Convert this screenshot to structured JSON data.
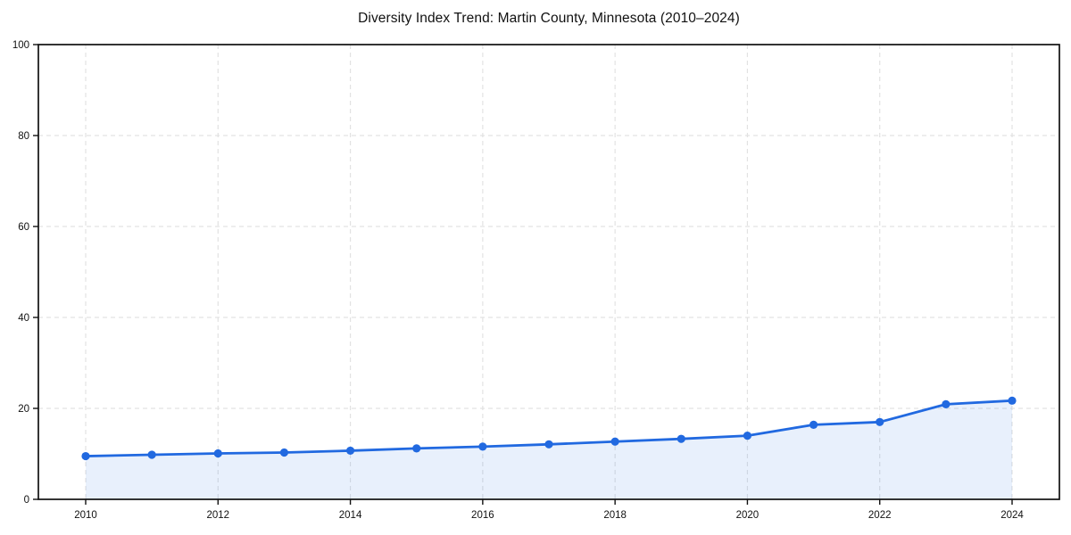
{
  "chart_data": {
    "type": "area",
    "title": "Diversity Index Trend: Martin County, Minnesota (2010–2024)",
    "x": [
      2010,
      2011,
      2012,
      2013,
      2014,
      2015,
      2016,
      2017,
      2018,
      2019,
      2020,
      2021,
      2022,
      2023,
      2024
    ],
    "series": [
      {
        "name": "Diversity Index",
        "values": [
          9.5,
          9.8,
          10.1,
          10.3,
          10.7,
          11.2,
          11.6,
          12.1,
          12.7,
          13.3,
          14.0,
          16.4,
          17.0,
          20.9,
          21.7
        ]
      }
    ],
    "xlabel": "",
    "ylabel": "",
    "ylim": [
      0,
      100
    ],
    "yticks": [
      0,
      20,
      40,
      60,
      80,
      100
    ],
    "xticks": [
      2010,
      2012,
      2014,
      2016,
      2018,
      2020,
      2022,
      2024
    ],
    "grid": "dashed",
    "legend": "none",
    "marker": "circle",
    "colors": {
      "line": "#2169e0",
      "fill": "#2169e0",
      "fill_opacity": "0.10",
      "grid": "#e2e2e2",
      "axis": "#111111",
      "text": "#111111",
      "background": "#ffffff"
    }
  }
}
